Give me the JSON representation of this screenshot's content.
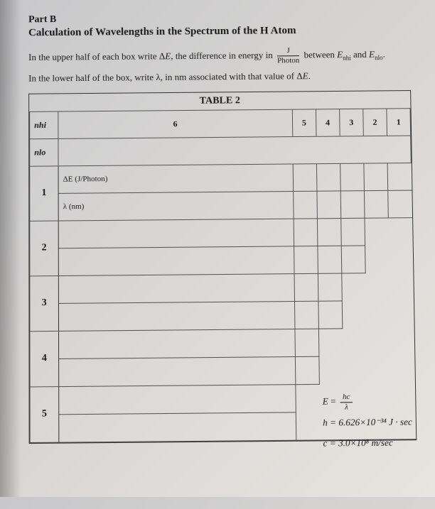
{
  "header": {
    "part": "Part B",
    "title": "Calculation of Wavelengths in the Spectrum of the H Atom"
  },
  "instructions": {
    "line1_pre": "In the upper half of each box write Δ",
    "line1_E": "E",
    "line1_mid": ", the difference in energy in ",
    "frac_num": "J",
    "frac_den": "Photon",
    "line1_between": " between ",
    "line1_Enhi": "E",
    "line1_nhi_sub": "nhi",
    "line1_and": " and ",
    "line1_Enlo": "E",
    "line1_nlo_sub": "nlo",
    "line1_end": ".",
    "line2_pre": "In the lower half of the box, write λ, in nm associated with that value of Δ",
    "line2_E": "E",
    "line2_end": "."
  },
  "table": {
    "title": "TABLE 2",
    "col_headers": [
      "6",
      "5",
      "4",
      "3",
      "2",
      "1"
    ],
    "nhi_label": "nhi",
    "nlo_label": "nlo",
    "row_labels": [
      "1",
      "2",
      "3",
      "4",
      "5"
    ],
    "cell_top": "ΔE (J/Photon)",
    "cell_bot": "λ (nm)"
  },
  "constants": {
    "eq1_lhs": "E",
    "eq1_eq": " = ",
    "eq1_num": "hc",
    "eq1_den": "λ",
    "eq2": "h = 6.626×10⁻³⁴ J · sec",
    "eq3": "c = 3.0×10⁸ m/sec"
  }
}
